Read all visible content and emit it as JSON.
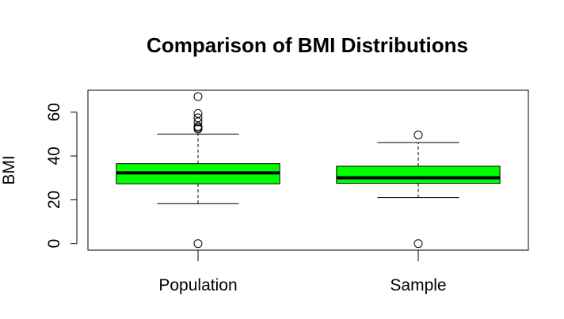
{
  "chart_data": {
    "type": "boxplot",
    "title": "Comparison of BMI Distributions",
    "xlabel": "",
    "ylabel": "BMI",
    "ylim": [
      -3,
      70
    ],
    "yticks": [
      0,
      20,
      40,
      60
    ],
    "grid": false,
    "legend": "none",
    "box_color": "#00ff00",
    "categories": [
      "Population",
      "Sample"
    ],
    "series": [
      {
        "whisker_low": 18.2,
        "q1": 27.3,
        "median": 32.3,
        "q3": 36.5,
        "whisker_high": 50.0,
        "outliers": [
          0,
          52.3,
          52.9,
          53.5,
          55.6,
          57.4,
          59.4,
          67.1
        ]
      },
      {
        "whisker_low": 21.0,
        "q1": 27.5,
        "median": 30.0,
        "q3": 35.3,
        "whisker_high": 46.1,
        "outliers": [
          0,
          49.6
        ]
      }
    ]
  }
}
